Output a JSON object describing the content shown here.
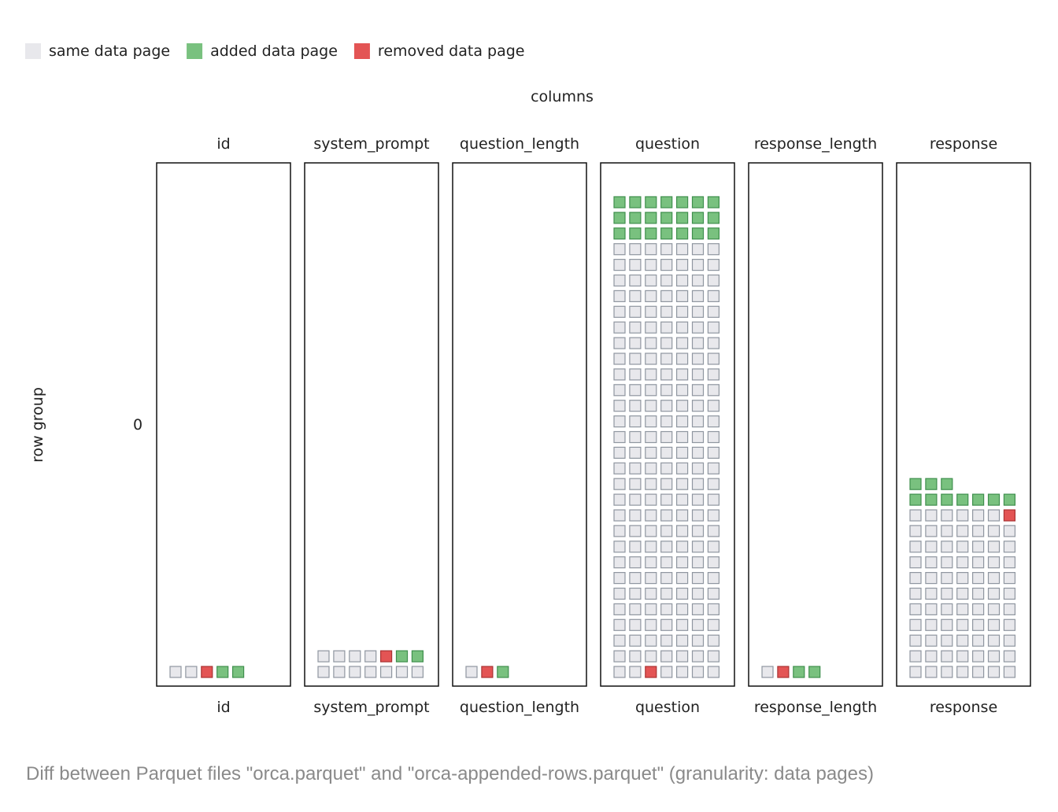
{
  "chart_data": {
    "type": "heatmap",
    "title": "columns",
    "ylabel": "row group",
    "row_groups": [
      "0"
    ],
    "colors": {
      "same": "#e8e8ec",
      "added": "#79c17f",
      "removed": "#e35454"
    },
    "legend": [
      {
        "key": "same",
        "label": "same data page"
      },
      {
        "key": "added",
        "label": "added data page"
      },
      {
        "key": "removed",
        "label": "removed data page"
      }
    ],
    "columns": [
      {
        "name": "id",
        "pages": [
          "S",
          "S",
          "R",
          "A",
          "A"
        ]
      },
      {
        "name": "system_prompt",
        "pages": [
          "S",
          "S",
          "S",
          "S",
          "S",
          "S",
          "S",
          "S",
          "S",
          "S",
          "S",
          "R",
          "A",
          "A"
        ]
      },
      {
        "name": "question_length",
        "pages": [
          "S",
          "R",
          "A"
        ]
      },
      {
        "name": "question",
        "same_before": 2,
        "removed": 1,
        "same_after": 193,
        "added": 21
      },
      {
        "name": "response_length",
        "pages": [
          "S",
          "R",
          "A",
          "A"
        ]
      },
      {
        "name": "response",
        "same_before": 76,
        "removed": 1,
        "same_after": 0,
        "added": 10
      }
    ]
  },
  "caption": "Diff between Parquet files \"orca.parquet\" and \"orca-appended-rows.parquet\" (granularity: data pages)"
}
